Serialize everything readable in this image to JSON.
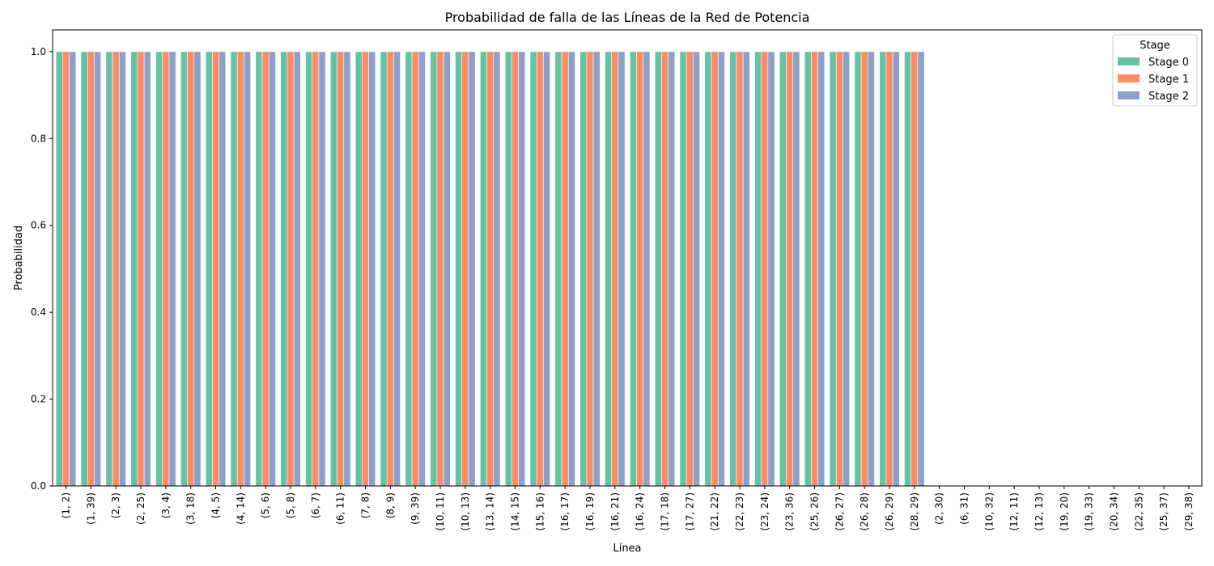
{
  "chart_data": {
    "type": "bar",
    "title": "Probabilidad de falla de las Líneas de la Red de Potencia",
    "xlabel": "Línea",
    "ylabel": "Probabilidad",
    "ylim": [
      0.0,
      1.05
    ],
    "yticks": [
      "0.0",
      "0.2",
      "0.4",
      "0.6",
      "0.8",
      "1.0"
    ],
    "grid": false,
    "legend": {
      "title": "Stage",
      "position": "top-right"
    },
    "categories": [
      "(1, 2)",
      "(1, 39)",
      "(2, 3)",
      "(2, 25)",
      "(3, 4)",
      "(3, 18)",
      "(4, 5)",
      "(4, 14)",
      "(5, 6)",
      "(5, 8)",
      "(6, 7)",
      "(6, 11)",
      "(7, 8)",
      "(8, 9)",
      "(9, 39)",
      "(10, 11)",
      "(10, 13)",
      "(13, 14)",
      "(14, 15)",
      "(15, 16)",
      "(16, 17)",
      "(16, 19)",
      "(16, 21)",
      "(16, 24)",
      "(17, 18)",
      "(17, 27)",
      "(21, 22)",
      "(22, 23)",
      "(23, 24)",
      "(23, 36)",
      "(25, 26)",
      "(26, 27)",
      "(26, 28)",
      "(26, 29)",
      "(28, 29)",
      "(2, 30)",
      "(6, 31)",
      "(10, 32)",
      "(12, 11)",
      "(12, 13)",
      "(19, 20)",
      "(19, 33)",
      "(20, 34)",
      "(22, 35)",
      "(25, 37)",
      "(29, 38)"
    ],
    "series": [
      {
        "name": "Stage 0",
        "color": "#66c2a5",
        "values": [
          1,
          1,
          1,
          1,
          1,
          1,
          1,
          1,
          1,
          1,
          1,
          1,
          1,
          1,
          1,
          1,
          1,
          1,
          1,
          1,
          1,
          1,
          1,
          1,
          1,
          1,
          1,
          1,
          1,
          1,
          1,
          1,
          1,
          1,
          1,
          0,
          0,
          0,
          0,
          0,
          0,
          0,
          0,
          0,
          0,
          0
        ]
      },
      {
        "name": "Stage 1",
        "color": "#fc8d62",
        "values": [
          1,
          1,
          1,
          1,
          1,
          1,
          1,
          1,
          1,
          1,
          1,
          1,
          1,
          1,
          1,
          1,
          1,
          1,
          1,
          1,
          1,
          1,
          1,
          1,
          1,
          1,
          1,
          1,
          1,
          1,
          1,
          1,
          1,
          1,
          1,
          0,
          0,
          0,
          0,
          0,
          0,
          0,
          0,
          0,
          0,
          0
        ]
      },
      {
        "name": "Stage 2",
        "color": "#8da0cb",
        "values": [
          1,
          1,
          1,
          1,
          1,
          1,
          1,
          1,
          1,
          1,
          1,
          1,
          1,
          1,
          1,
          1,
          1,
          1,
          1,
          1,
          1,
          1,
          1,
          1,
          1,
          1,
          1,
          1,
          1,
          1,
          1,
          1,
          1,
          1,
          1,
          0,
          0,
          0,
          0,
          0,
          0,
          0,
          0,
          0,
          0,
          0
        ]
      }
    ]
  }
}
